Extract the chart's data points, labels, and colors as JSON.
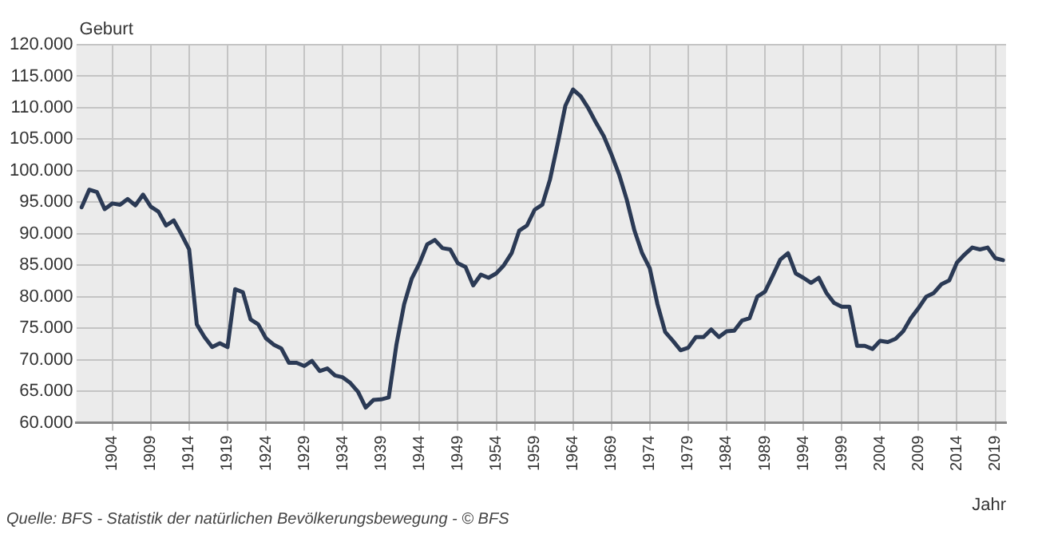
{
  "chart_data": {
    "type": "line",
    "ylabel": "Geburt",
    "xlabel": "Jahr",
    "annotations": [
      "Quelle: BFS - Statistik der natürlichen Bevölkerungsbewegung - © BFS"
    ],
    "x": [
      1900,
      1901,
      1902,
      1903,
      1904,
      1905,
      1906,
      1907,
      1908,
      1909,
      1910,
      1911,
      1912,
      1913,
      1914,
      1915,
      1916,
      1917,
      1918,
      1919,
      1920,
      1921,
      1922,
      1923,
      1924,
      1925,
      1926,
      1927,
      1928,
      1929,
      1930,
      1931,
      1932,
      1933,
      1934,
      1935,
      1936,
      1937,
      1938,
      1939,
      1940,
      1941,
      1942,
      1943,
      1944,
      1945,
      1946,
      1947,
      1948,
      1949,
      1950,
      1951,
      1952,
      1953,
      1954,
      1955,
      1956,
      1957,
      1958,
      1959,
      1960,
      1961,
      1962,
      1963,
      1964,
      1965,
      1966,
      1967,
      1968,
      1969,
      1970,
      1971,
      1972,
      1973,
      1974,
      1975,
      1976,
      1977,
      1978,
      1979,
      1980,
      1981,
      1982,
      1983,
      1984,
      1985,
      1986,
      1987,
      1988,
      1989,
      1990,
      1991,
      1992,
      1993,
      1994,
      1995,
      1996,
      1997,
      1998,
      1999,
      2000,
      2001,
      2002,
      2003,
      2004,
      2005,
      2006,
      2007,
      2008,
      2009,
      2010,
      2011,
      2012,
      2013,
      2014,
      2015,
      2016,
      2017,
      2018,
      2019,
      2020
    ],
    "series": [
      {
        "color": "#2b3a55",
        "values": [
          94200,
          97000,
          96600,
          93900,
          94800,
          94600,
          95500,
          94500,
          96200,
          94300,
          93500,
          91300,
          92100,
          89900,
          87500,
          75600,
          73600,
          72000,
          72600,
          72000,
          81200,
          80700,
          76400,
          75600,
          73400,
          72400,
          71800,
          69500,
          69500,
          69000,
          69800,
          68200,
          68600,
          67500,
          67200,
          66300,
          64900,
          62400,
          63600,
          63700,
          64000,
          72400,
          78800,
          82900,
          85300,
          88300,
          89000,
          87700,
          87500,
          85300,
          84700,
          81800,
          83500,
          83000,
          83700,
          85000,
          86900,
          90500,
          91300,
          93800,
          94600,
          98600,
          104300,
          110300,
          112900,
          111800,
          109900,
          107600,
          105500,
          102600,
          99400,
          95400,
          90500,
          86900,
          84500,
          78800,
          74400,
          73000,
          71500,
          71900,
          73600,
          73600,
          74800,
          73600,
          74500,
          74600,
          76200,
          76600,
          80000,
          80800,
          83300,
          85900,
          86900,
          83700,
          83000,
          82200,
          83000,
          80600,
          79000,
          78400,
          78400,
          72200,
          72200,
          71700,
          73000,
          72800,
          73300,
          74500,
          76600,
          78200,
          80000,
          80600,
          82000,
          82600,
          85400,
          86700,
          87800,
          87500,
          87800,
          86100,
          85800
        ]
      }
    ],
    "xlim": [
      1899.3,
      2020.4
    ],
    "xticks": [
      1904,
      1909,
      1914,
      1919,
      1924,
      1929,
      1934,
      1939,
      1944,
      1949,
      1954,
      1959,
      1964,
      1969,
      1974,
      1979,
      1984,
      1989,
      1994,
      1999,
      2004,
      2009,
      2014,
      2019
    ],
    "ylim": [
      60000,
      120000
    ],
    "yticks": [
      {
        "value": 60000,
        "label": "60.000"
      },
      {
        "value": 65000,
        "label": "65.000"
      },
      {
        "value": 70000,
        "label": "70.000"
      },
      {
        "value": 75000,
        "label": "75.000"
      },
      {
        "value": 80000,
        "label": "80.000"
      },
      {
        "value": 85000,
        "label": "85.000"
      },
      {
        "value": 90000,
        "label": "90.000"
      },
      {
        "value": 95000,
        "label": "95.000"
      },
      {
        "value": 100000,
        "label": "100.000"
      },
      {
        "value": 105000,
        "label": "105.000"
      },
      {
        "value": 110000,
        "label": "110.000"
      },
      {
        "value": 115000,
        "label": "115.000"
      },
      {
        "value": 120000,
        "label": "120.000"
      }
    ],
    "grid": true,
    "marker": "none",
    "line_style": "solid",
    "legend": false
  }
}
